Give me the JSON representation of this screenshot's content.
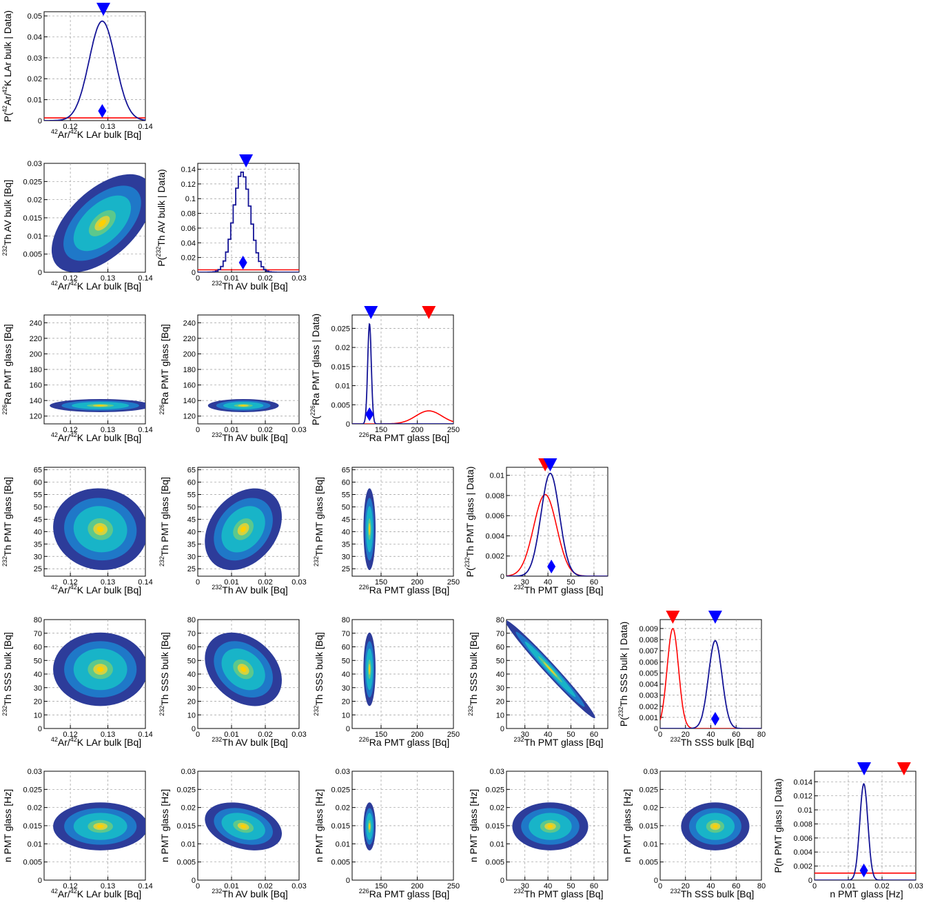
{
  "chart_data": {
    "type": "corner",
    "parameters": [
      {
        "key": "ar42",
        "label_sup": "42",
        "label_pre": "",
        "label_mid": "Ar/",
        "label_sup2": "42",
        "label_rest": "K LAr bulk [Bq]",
        "range": [
          0.113,
          0.14
        ],
        "ticks": [
          0.12,
          0.13,
          0.14
        ],
        "tick_labels": [
          "0.12",
          "0.13",
          "0.14"
        ]
      },
      {
        "key": "thav",
        "label_sup": "232",
        "label_pre": "",
        "label_mid": "Th AV bulk [Bq]",
        "label_sup2": "",
        "label_rest": "",
        "range": [
          0,
          0.03
        ],
        "ticks": [
          0,
          0.01,
          0.02,
          0.03
        ],
        "tick_labels": [
          "0",
          "0.01",
          "0.02",
          "0.03"
        ]
      },
      {
        "key": "rapmt",
        "label_sup": "226",
        "label_pre": "",
        "label_mid": "Ra PMT glass [Bq]",
        "label_sup2": "",
        "label_rest": "",
        "range": [
          110,
          250
        ],
        "ticks": [
          150,
          200,
          250
        ],
        "tick_labels": [
          "150",
          "200",
          "250"
        ]
      },
      {
        "key": "thpmt",
        "label_sup": "232",
        "label_pre": "",
        "label_mid": "Th PMT glass [Bq]",
        "label_sup2": "",
        "label_rest": "",
        "range": [
          22,
          66
        ],
        "ticks": [
          30,
          40,
          50,
          60
        ],
        "tick_labels": [
          "30",
          "40",
          "50",
          "60"
        ]
      },
      {
        "key": "thsss",
        "label_sup": "232",
        "label_pre": "",
        "label_mid": "Th SSS bulk [Bq]",
        "label_sup2": "",
        "label_rest": "",
        "range": [
          0,
          80
        ],
        "ticks": [
          0,
          20,
          40,
          60,
          80
        ],
        "tick_labels": [
          "0",
          "20",
          "40",
          "60",
          "80"
        ]
      },
      {
        "key": "npmt",
        "label_sup": "",
        "label_pre": "n PMT glass [Hz]",
        "label_mid": "",
        "label_sup2": "",
        "label_rest": "",
        "range": [
          0,
          0.03
        ],
        "ticks": [
          0,
          0.01,
          0.02,
          0.03
        ],
        "tick_labels": [
          "0",
          "0.01",
          "0.02",
          "0.03"
        ]
      }
    ],
    "two_d_y_axes": [
      {
        "param": "thav",
        "ticks": [
          0,
          0.005,
          0.01,
          0.015,
          0.02,
          0.025,
          0.03
        ],
        "tick_labels": [
          "0",
          "0.005",
          "0.01",
          "0.015",
          "0.02",
          "0.025",
          "0.03"
        ]
      },
      {
        "param": "rapmt",
        "range": [
          110,
          250
        ],
        "ticks": [
          120,
          140,
          160,
          180,
          200,
          220,
          240
        ],
        "tick_labels": [
          "120",
          "140",
          "160",
          "180",
          "200",
          "220",
          "240"
        ]
      },
      {
        "param": "thpmt",
        "range": [
          22,
          66
        ],
        "ticks": [
          25,
          30,
          35,
          40,
          45,
          50,
          55,
          60,
          65
        ],
        "tick_labels": [
          "25",
          "30",
          "35",
          "40",
          "45",
          "50",
          "55",
          "60",
          "65"
        ]
      },
      {
        "param": "thsss",
        "range": [
          0,
          80
        ],
        "ticks": [
          0,
          10,
          20,
          30,
          40,
          50,
          60,
          70,
          80
        ],
        "tick_labels": [
          "0",
          "10",
          "20",
          "30",
          "40",
          "50",
          "60",
          "70",
          "80"
        ]
      },
      {
        "param": "npmt",
        "range": [
          0,
          0.03
        ],
        "ticks": [
          0,
          0.005,
          0.01,
          0.015,
          0.02,
          0.025,
          0.03
        ],
        "tick_labels": [
          "0",
          "0.005",
          "0.01",
          "0.015",
          "0.02",
          "0.025",
          "0.03"
        ]
      }
    ],
    "marginals": [
      {
        "param": "ar42",
        "ylabel_pre": "P(",
        "ylabel_sup": "42",
        "ylabel_mid": "Ar/",
        "ylabel_sup2": "42",
        "ylabel_rest": "K LAr bulk | Data)",
        "ylim": [
          0,
          0.052
        ],
        "y_ticks": [
          0,
          0.01,
          0.02,
          0.03,
          0.04,
          0.05
        ],
        "y_tick_labels": [
          "0",
          "0.01",
          "0.02",
          "0.03",
          "0.04",
          "0.05"
        ],
        "posterior": {
          "mean": 0.1285,
          "sigma": 0.0035,
          "peak": 0.0475,
          "step": false
        },
        "prior": {
          "kind": "flat",
          "level": 0.0013
        },
        "best_fit": 0.1288,
        "posterior_marker": 0.1285,
        "prior_marker": null
      },
      {
        "param": "thav",
        "ylabel_pre": "P(",
        "ylabel_sup": "232",
        "ylabel_mid": "Th AV bulk | Data)",
        "ylabel_sup2": "",
        "ylabel_rest": "",
        "ylim": [
          0,
          0.148
        ],
        "y_ticks": [
          0,
          0.02,
          0.04,
          0.06,
          0.08,
          0.1,
          0.12,
          0.14
        ],
        "y_tick_labels": [
          "0",
          "0.02",
          "0.04",
          "0.06",
          "0.08",
          "0.1",
          "0.12",
          "0.14"
        ],
        "posterior": {
          "mean": 0.0131,
          "sigma": 0.0025,
          "peak": 0.136,
          "step": true
        },
        "prior": {
          "kind": "flat",
          "level": 0.0033
        },
        "best_fit": 0.0143,
        "posterior_marker": 0.0134,
        "prior_marker": null
      },
      {
        "param": "rapmt",
        "ylabel_pre": "P(",
        "ylabel_sup": "226",
        "ylabel_mid": "Ra PMT glass | Data)",
        "ylabel_sup2": "",
        "ylabel_rest": "",
        "ylim": [
          0,
          0.0285
        ],
        "y_ticks": [
          0,
          0.005,
          0.01,
          0.015,
          0.02,
          0.025
        ],
        "y_tick_labels": [
          "0",
          "0.005",
          "0.01",
          "0.015",
          "0.02",
          "0.025"
        ],
        "posterior": {
          "mean": 134,
          "sigma": 2.5,
          "peak": 0.0262,
          "step": false
        },
        "prior": {
          "kind": "gauss",
          "mean": 216,
          "sigma": 18,
          "peak": 0.0034
        },
        "best_fit": 136,
        "posterior_marker": 134,
        "prior_marker": 216
      },
      {
        "param": "thpmt",
        "ylabel_pre": "P(",
        "ylabel_sup": "232",
        "ylabel_mid": "Th PMT glass | Data)",
        "ylabel_sup2": "",
        "ylabel_rest": "",
        "ylim": [
          0,
          0.0108
        ],
        "y_ticks": [
          0,
          0.002,
          0.004,
          0.006,
          0.008,
          0.01
        ],
        "y_tick_labels": [
          "0",
          "0.002",
          "0.004",
          "0.006",
          "0.008",
          "0.01"
        ],
        "posterior": {
          "mean": 41,
          "sigma": 4.0,
          "peak": 0.0102,
          "step": false
        },
        "prior": {
          "kind": "gauss",
          "mean": 38.8,
          "sigma": 5,
          "peak": 0.0081
        },
        "best_fit": 41,
        "posterior_marker": 41.5,
        "prior_marker": 38.8
      },
      {
        "param": "thsss",
        "ylabel_pre": "P(",
        "ylabel_sup": "232",
        "ylabel_mid": "Th SSS bulk | Data)",
        "ylabel_sup2": "",
        "ylabel_rest": "",
        "ylim": [
          0,
          0.0098
        ],
        "y_ticks": [
          0,
          0.001,
          0.002,
          0.003,
          0.004,
          0.005,
          0.006,
          0.007,
          0.008,
          0.009
        ],
        "y_tick_labels": [
          "0",
          "0.001",
          "0.002",
          "0.003",
          "0.004",
          "0.005",
          "0.006",
          "0.007",
          "0.008",
          "0.009"
        ],
        "posterior": {
          "mean": 43.5,
          "sigma": 5.3,
          "peak": 0.0079,
          "step": false
        },
        "prior": {
          "kind": "gauss",
          "mean": 10,
          "sigma": 4.5,
          "peak": 0.009
        },
        "best_fit": 43.5,
        "posterior_marker": 43.5,
        "prior_marker": 10
      },
      {
        "param": "npmt",
        "ylabel_pre": "P(n PMT glass | Data)",
        "ylabel_sup": "",
        "ylabel_mid": "",
        "ylabel_sup2": "",
        "ylabel_rest": "",
        "ylim": [
          0,
          0.0155
        ],
        "y_ticks": [
          0,
          0.002,
          0.004,
          0.006,
          0.008,
          0.01,
          0.012,
          0.014
        ],
        "y_tick_labels": [
          "0",
          "0.002",
          "0.004",
          "0.006",
          "0.008",
          "0.01",
          "0.012",
          "0.014"
        ],
        "posterior": {
          "mean": 0.0146,
          "sigma": 0.0012,
          "peak": 0.0137,
          "step": false
        },
        "prior": {
          "kind": "flat",
          "level": 0.001
        },
        "best_fit": 0.0147,
        "posterior_marker": 0.0146,
        "prior_marker": 0.0265
      }
    ],
    "joint_posteriors": [
      {
        "x": "ar42",
        "y": "thav",
        "center": [
          0.1285,
          0.0135
        ],
        "sigma": [
          0.0045,
          0.0045
        ],
        "rho": 0.55
      },
      {
        "x": "ar42",
        "y": "rapmt",
        "center": [
          0.128,
          133.5
        ],
        "sigma": [
          0.0045,
          2.8
        ],
        "rho": 0
      },
      {
        "x": "thav",
        "y": "rapmt",
        "center": [
          0.0135,
          133.5
        ],
        "sigma": [
          0.0035,
          2.8
        ],
        "rho": 0
      },
      {
        "x": "ar42",
        "y": "thpmt",
        "center": [
          0.128,
          41
        ],
        "sigma": [
          0.0042,
          5.5
        ],
        "rho": -0.05
      },
      {
        "x": "thav",
        "y": "thpmt",
        "center": [
          0.0135,
          41
        ],
        "sigma": [
          0.0038,
          5.5
        ],
        "rho": 0.3
      },
      {
        "x": "rapmt",
        "y": "thpmt",
        "center": [
          134,
          41
        ],
        "sigma": [
          2.8,
          5.5
        ],
        "rho": 0
      },
      {
        "x": "ar42",
        "y": "thsss",
        "center": [
          0.128,
          43.5
        ],
        "sigma": [
          0.0042,
          9
        ],
        "rho": 0
      },
      {
        "x": "thav",
        "y": "thsss",
        "center": [
          0.0135,
          43.5
        ],
        "sigma": [
          0.0038,
          9
        ],
        "rho": -0.3
      },
      {
        "x": "rapmt",
        "y": "thsss",
        "center": [
          134,
          43.5
        ],
        "sigma": [
          2.8,
          9
        ],
        "rho": 0
      },
      {
        "x": "thpmt",
        "y": "thsss",
        "center": [
          41,
          43.5
        ],
        "sigma": [
          6.5,
          12
        ],
        "rho": -0.985
      },
      {
        "x": "ar42",
        "y": "npmt",
        "center": [
          0.128,
          0.0148
        ],
        "sigma": [
          0.0042,
          0.0022
        ],
        "rho": 0
      },
      {
        "x": "thav",
        "y": "npmt",
        "center": [
          0.0135,
          0.0148
        ],
        "sigma": [
          0.0038,
          0.0022
        ],
        "rho": -0.3
      },
      {
        "x": "rapmt",
        "y": "npmt",
        "center": [
          134,
          0.0148
        ],
        "sigma": [
          2.8,
          0.0022
        ],
        "rho": 0
      },
      {
        "x": "thpmt",
        "y": "npmt",
        "center": [
          41,
          0.0148
        ],
        "sigma": [
          5.5,
          0.0022
        ],
        "rho": 0
      },
      {
        "x": "thsss",
        "y": "npmt",
        "center": [
          43.5,
          0.0148
        ],
        "sigma": [
          9,
          0.0022
        ],
        "rho": 0
      }
    ],
    "colors": {
      "posterior": "#141496",
      "prior": "#ff0000",
      "best_fit_marker": "#0000ff",
      "prior_marker": "#ff0000",
      "grid": "#9a9a9a",
      "colormap": [
        "#2d3c9a",
        "#1f78c8",
        "#18b4c8",
        "#5cc88c",
        "#d2d242",
        "#ffd000"
      ]
    },
    "grid": true
  }
}
